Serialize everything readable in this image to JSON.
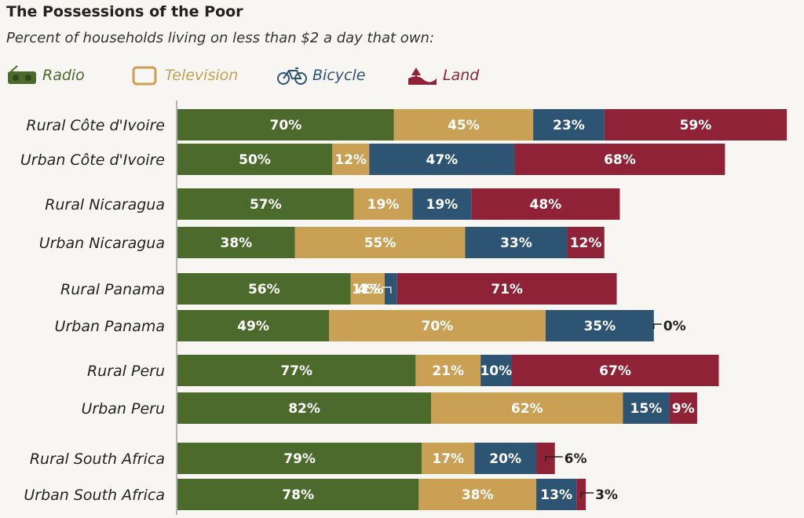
{
  "title": "The Possessions of the Poor",
  "subtitle": "Percent of households living on less than $2 a day that own:",
  "colors": {
    "radio": "#4b6a2b",
    "television": "#c9a054",
    "bicycle": "#2e5474",
    "land": "#8f2236"
  },
  "legend": [
    {
      "key": "radio",
      "label": "Radio",
      "icon": "radio-icon"
    },
    {
      "key": "television",
      "label": "Television",
      "icon": "television-icon"
    },
    {
      "key": "bicycle",
      "label": "Bicycle",
      "icon": "bicycle-icon"
    },
    {
      "key": "land",
      "label": "Land",
      "icon": "land-icon"
    }
  ],
  "chart_data": {
    "type": "bar",
    "orientation": "horizontal",
    "stacked": true,
    "categories": [
      "Rural Côte d'Ivoire",
      "Urban Côte d'Ivoire",
      "Rural Nicaragua",
      "Urban Nicaragua",
      "Rural Panama",
      "Urban Panama",
      "Rural Peru",
      "Urban Peru",
      "Rural South Africa",
      "Urban South Africa"
    ],
    "series": [
      {
        "name": "Radio",
        "key": "radio",
        "values": [
          70,
          50,
          57,
          38,
          56,
          49,
          77,
          82,
          79,
          78
        ]
      },
      {
        "name": "Television",
        "key": "television",
        "values": [
          45,
          12,
          19,
          55,
          11,
          70,
          21,
          62,
          17,
          38
        ]
      },
      {
        "name": "Bicycle",
        "key": "bicycle",
        "values": [
          23,
          47,
          19,
          33,
          4,
          35,
          10,
          15,
          20,
          13
        ]
      },
      {
        "name": "Land",
        "key": "land",
        "values": [
          59,
          68,
          48,
          12,
          71,
          0,
          67,
          9,
          6,
          3
        ]
      }
    ],
    "value_suffix": "%",
    "grid": false,
    "legend_position": "top-left"
  }
}
